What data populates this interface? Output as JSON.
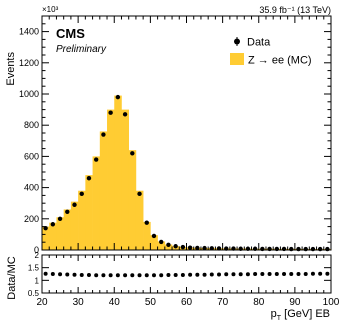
{
  "chart_data": [
    {
      "type": "bar",
      "experiment": "CMS",
      "status": "Preliminary",
      "exponent_label": "×10³",
      "lumi": "35.9 fb⁻¹ (13 TeV)",
      "ylabel": "Events",
      "xlim": [
        20,
        100
      ],
      "ylim": [
        0,
        1500
      ],
      "yticks": [
        0,
        200,
        400,
        600,
        800,
        1000,
        1200,
        1400
      ],
      "legend_position": "top-right",
      "legend": [
        {
          "label": "Data",
          "marker": "point"
        },
        {
          "label": "Z → ee (MC)",
          "marker": "box"
        }
      ],
      "colors": {
        "mc_fill": "#FFCC33",
        "data": "#000000"
      },
      "bin_edges": [
        20,
        22,
        24,
        26,
        28,
        30,
        32,
        34,
        36,
        38,
        40,
        42,
        44,
        46,
        48,
        50,
        52,
        54,
        56,
        58,
        60,
        62,
        64,
        66,
        68,
        70,
        72,
        74,
        76,
        78,
        80,
        82,
        84,
        86,
        88,
        90,
        92,
        94,
        96,
        98,
        100
      ],
      "series": [
        {
          "name": "Z → ee (MC)",
          "style": "filled-histogram",
          "values": [
            150,
            175,
            210,
            260,
            310,
            380,
            480,
            600,
            760,
            900,
            990,
            900,
            640,
            380,
            180,
            95,
            55,
            35,
            25,
            20,
            16,
            14,
            13,
            12,
            11,
            10,
            10,
            9,
            9,
            8,
            8,
            8,
            7,
            7,
            7,
            7,
            6,
            6,
            6,
            6
          ]
        },
        {
          "name": "Data",
          "style": "points",
          "values": [
            140,
            165,
            200,
            245,
            290,
            360,
            460,
            580,
            740,
            880,
            980,
            870,
            620,
            360,
            175,
            90,
            52,
            33,
            24,
            19,
            15,
            13,
            12,
            11,
            10,
            9,
            9,
            8,
            8,
            8,
            7,
            7,
            7,
            7,
            6,
            6,
            6,
            6,
            6,
            6
          ]
        }
      ]
    },
    {
      "type": "scatter",
      "ylabel": "Data/MC",
      "xlabel": "p_T [GeV] EB",
      "xlabel_main": "p",
      "xlabel_sub": "T",
      "xlabel_rest": " [GeV] EB",
      "xlim": [
        20,
        100
      ],
      "ylim": [
        0.5,
        2
      ],
      "yticks": [
        0.5,
        1,
        1.5,
        2
      ],
      "yticklabels": [
        "0.5",
        "1",
        "1.5",
        "2"
      ],
      "xticks": [
        20,
        30,
        40,
        50,
        60,
        70,
        80,
        90,
        100
      ],
      "x": [
        21,
        23,
        25,
        27,
        29,
        31,
        33,
        35,
        37,
        39,
        41,
        43,
        45,
        47,
        49,
        51,
        53,
        55,
        57,
        59,
        61,
        63,
        65,
        67,
        69,
        71,
        73,
        75,
        77,
        79,
        81,
        83,
        85,
        87,
        89,
        91,
        93,
        95,
        97,
        99
      ],
      "y": [
        1.26,
        1.25,
        1.24,
        1.23,
        1.22,
        1.21,
        1.21,
        1.2,
        1.2,
        1.2,
        1.2,
        1.2,
        1.2,
        1.2,
        1.2,
        1.2,
        1.2,
        1.21,
        1.21,
        1.21,
        1.22,
        1.22,
        1.22,
        1.23,
        1.23,
        1.24,
        1.24,
        1.24,
        1.24,
        1.25,
        1.25,
        1.25,
        1.25,
        1.25,
        1.25,
        1.25,
        1.25,
        1.26,
        1.26,
        1.26
      ]
    }
  ]
}
